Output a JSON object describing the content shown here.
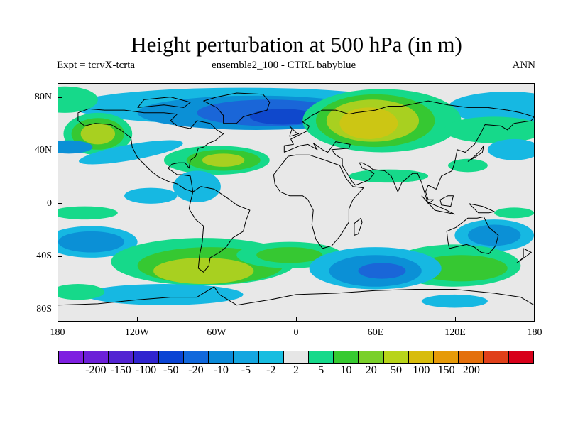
{
  "title": "Height perturbation at 500 hPa (in m)",
  "subtitle_left": "Expt = tcrvX-tcrta",
  "subtitle_center": "ensemble2_100 - CTRL babyblue",
  "subtitle_right": "ANN",
  "lat_labels": [
    "80N",
    "40N",
    "0",
    "40S",
    "80S"
  ],
  "lon_labels": [
    "180",
    "120W",
    "60W",
    "0",
    "60E",
    "120E",
    "180"
  ],
  "colorbar": {
    "colors": [
      "#7e1fe0",
      "#6c20d8",
      "#5324d2",
      "#3024cf",
      "#0a44d4",
      "#1168dc",
      "#0b8ad8",
      "#14a6e0",
      "#18bde0",
      "#e6e6e6",
      "#16d98a",
      "#36ca30",
      "#7ad02a",
      "#b8d41a",
      "#d8bc0c",
      "#e69a08",
      "#e4700c",
      "#e0401a",
      "#d8001a"
    ],
    "labels": [
      "-200",
      "-150",
      "-100",
      "-50",
      "-20",
      "-10",
      "-5",
      "-2",
      "2",
      "5",
      "10",
      "20",
      "50",
      "100",
      "150",
      "200"
    ]
  },
  "field_colors": {
    "background": "#e8e8e8",
    "neg_weak": "#16b8e2",
    "neg_mid": "#0b90d6",
    "neg_strong": "#1a66d8",
    "neg_core": "#0f48cc",
    "pos_weak": "#16d98a",
    "pos_mid": "#36c832",
    "pos_strong": "#a8d020",
    "pos_core": "#ccc614"
  }
}
